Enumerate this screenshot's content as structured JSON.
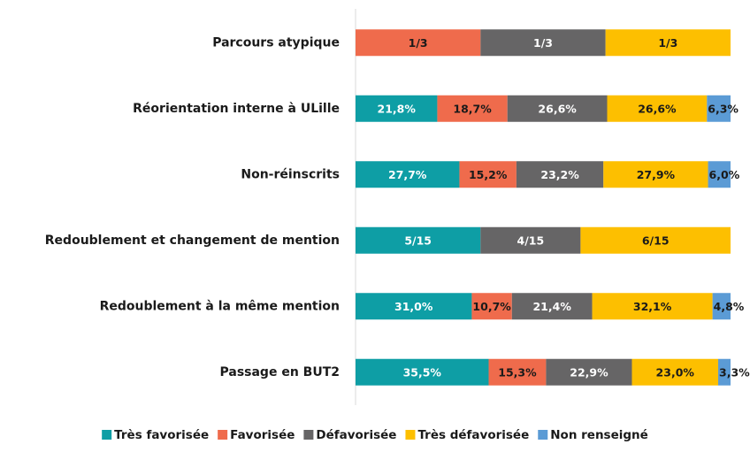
{
  "chart_data": {
    "type": "stacked-bar-horizontal",
    "categories": [
      "Parcours atypique",
      "Réorientation interne à ULille",
      "Non-réinscrits",
      "Redoublement et changement de mention",
      "Redoublement à la même mention",
      "Passage en BUT2"
    ],
    "xlim": [
      0,
      100
    ],
    "legend": "bottom",
    "series": [
      {
        "name": "Très favorisée",
        "color": "#0e9ea5",
        "values": [
          null,
          21.8,
          27.7,
          33.333,
          31.0,
          35.5
        ],
        "value_labels": [
          null,
          "21,8%",
          "27,7%",
          "5/15",
          "31,0%",
          "35,5%"
        ]
      },
      {
        "name": "Favorisée",
        "color": "#ef6b4c",
        "values": [
          33.333,
          18.7,
          15.2,
          null,
          10.7,
          15.3
        ],
        "value_labels": [
          "1/3",
          "18,7%",
          "15,2%",
          null,
          "10,7%",
          "15,3%"
        ]
      },
      {
        "name": "Défavorisée",
        "color": "#666566",
        "values": [
          33.333,
          26.6,
          23.2,
          26.667,
          21.4,
          22.9
        ],
        "value_labels": [
          "1/3",
          "26,6%",
          "23,2%",
          "4/15",
          "21,4%",
          "22,9%"
        ]
      },
      {
        "name": "Très défavorisée",
        "color": "#fdbf00",
        "values": [
          33.333,
          26.6,
          27.9,
          40.0,
          32.1,
          23.0
        ],
        "value_labels": [
          "1/3",
          "26,6%",
          "27,9%",
          "6/15",
          "32,1%",
          "23,0%"
        ]
      },
      {
        "name": "Non renseigné",
        "color": "#5b9bd5",
        "values": [
          null,
          6.3,
          6.0,
          null,
          4.8,
          3.3
        ],
        "value_labels": [
          null,
          "6,3%",
          "6,0%",
          null,
          "4,8%",
          "3,3%"
        ]
      }
    ]
  }
}
